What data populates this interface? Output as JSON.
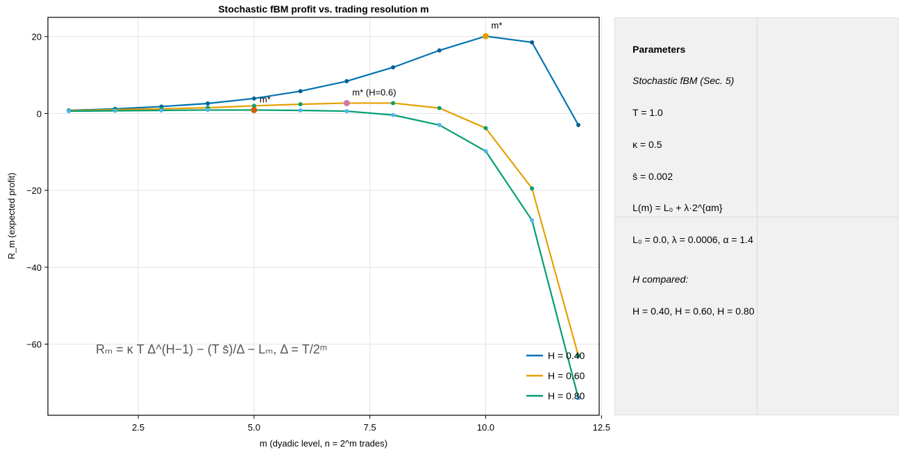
{
  "chart_data": {
    "type": "line",
    "title": "Stochastic fBM profit vs. trading resolution m",
    "xlabel": "m (dyadic level, n = 2^m trades)",
    "ylabel": "R_m (expected profit)",
    "xlim": [
      0.55,
      12.45
    ],
    "ylim": [
      -78.5,
      25
    ],
    "xticks": [
      2.5,
      5.0,
      7.5,
      10.0,
      12.5
    ],
    "xtick_labels": [
      "2.5",
      "5.0",
      "7.5",
      "10.0",
      "12.5"
    ],
    "yticks": [
      20,
      0,
      -20,
      -40,
      -60
    ],
    "ytick_labels": [
      "20",
      "0",
      "−20",
      "−40",
      "−60"
    ],
    "grid": true,
    "legend_position": "bottom-right",
    "x": [
      1,
      2,
      3,
      4,
      5,
      6,
      7,
      8,
      9,
      10,
      11,
      12
    ],
    "series": [
      {
        "name": "H = 0.40",
        "color": "#0072b2",
        "marker_color": "#005f95",
        "values": [
          0.8,
          1.2,
          1.8,
          2.6,
          3.9,
          5.8,
          8.4,
          12.0,
          16.4,
          20.1,
          18.5,
          -3.0
        ]
      },
      {
        "name": "H = 0.60",
        "color": "#e69f00",
        "marker_color": "#009e73",
        "values": [
          0.7,
          1.0,
          1.2,
          1.5,
          2.0,
          2.4,
          2.7,
          2.7,
          1.4,
          -3.8,
          -19.5,
          -63.0
        ]
      },
      {
        "name": "H = 0.80",
        "color": "#009e73",
        "marker_color": "#56b4e9",
        "values": [
          0.6,
          0.7,
          0.8,
          0.9,
          0.9,
          0.8,
          0.6,
          -0.4,
          -3.0,
          -9.8,
          -27.8,
          -74.0
        ]
      }
    ],
    "optima": [
      {
        "label": "m*",
        "x": 10,
        "y": 20.1,
        "color": "#e69f00",
        "position": "upper-right"
      },
      {
        "label": "m* (H=0.6)",
        "x": 7,
        "y": 2.7,
        "color": "#cc79a7",
        "position": "upper-right"
      },
      {
        "label": "m*",
        "x": 5,
        "y": 0.9,
        "color": "#d55e00",
        "position": "upper-right"
      }
    ],
    "formula_annotation": "Rₘ = κ T Δ^(H−1) − (T s̄)/Δ − Lₘ,  Δ = T/2ᵐ"
  },
  "panel": {
    "heading": "Parameters",
    "subtitle": "Stochastic fBM (Sec. 5)",
    "lines": [
      "T = 1.0",
      "κ = 0.5",
      "s̄ = 0.002",
      "L(m) = L₀ + λ·2^{αm}",
      "L₀ = 0.0,  λ = 0.0006,  α = 1.4"
    ],
    "h_heading": "H compared:",
    "h_values": "H = 0.40, H = 0.60, H = 0.80"
  }
}
